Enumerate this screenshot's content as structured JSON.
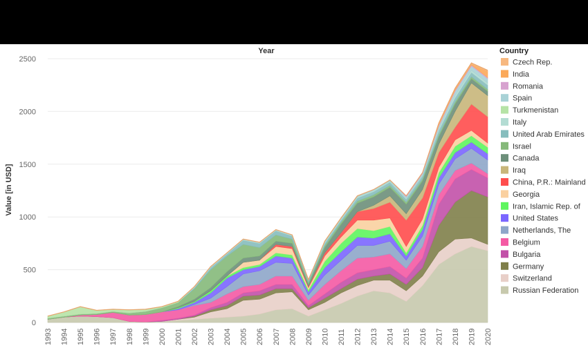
{
  "chart_data": {
    "type": "area",
    "stacked": true,
    "title": "",
    "xlabel": "Year",
    "ylabel": "Value [in USD]",
    "ylim": [
      0,
      2500
    ],
    "yticks": [
      0,
      500,
      1000,
      1500,
      2000,
      2500
    ],
    "grid": true,
    "legend_title": "Country",
    "legend_position": "right",
    "x": [
      "1993",
      "1994",
      "1995",
      "1996",
      "1997",
      "1998",
      "1999",
      "2000",
      "2001",
      "2002",
      "2003",
      "2004",
      "2005",
      "2006",
      "2007",
      "2008",
      "2009",
      "2010",
      "2011",
      "2012",
      "2013",
      "2014",
      "2015",
      "2016",
      "2017",
      "2018",
      "2019",
      "2020"
    ],
    "series": [
      {
        "name": "Russian Federation",
        "color": "#c7c9ad",
        "values": [
          30,
          50,
          60,
          55,
          45,
          10,
          5,
          10,
          20,
          30,
          40,
          50,
          60,
          80,
          120,
          130,
          60,
          120,
          180,
          250,
          300,
          280,
          200,
          350,
          550,
          650,
          720,
          680
        ]
      },
      {
        "name": "Switzerland",
        "color": "#e8cfc8",
        "values": [
          0,
          0,
          0,
          0,
          0,
          0,
          0,
          0,
          10,
          20,
          60,
          80,
          150,
          140,
          160,
          160,
          60,
          70,
          100,
          100,
          100,
          120,
          100,
          90,
          120,
          140,
          80,
          60
        ]
      },
      {
        "name": "Germany",
        "color": "#7f7f4a",
        "values": [
          0,
          0,
          0,
          0,
          0,
          0,
          0,
          0,
          0,
          10,
          20,
          30,
          40,
          40,
          40,
          30,
          20,
          40,
          40,
          60,
          40,
          60,
          60,
          80,
          250,
          350,
          450,
          450
        ]
      },
      {
        "name": "Bulgaria",
        "color": "#c251a8",
        "values": [
          0,
          0,
          0,
          0,
          0,
          0,
          0,
          10,
          10,
          10,
          20,
          30,
          30,
          40,
          40,
          40,
          20,
          40,
          60,
          60,
          60,
          70,
          60,
          90,
          200,
          220,
          200,
          180
        ]
      },
      {
        "name": "Belgium",
        "color": "#f45aa4",
        "values": [
          0,
          0,
          10,
          20,
          50,
          60,
          70,
          80,
          80,
          90,
          50,
          80,
          60,
          60,
          80,
          80,
          50,
          90,
          110,
          140,
          120,
          120,
          90,
          110,
          90,
          80,
          60,
          40
        ]
      },
      {
        "name": "Netherlands, The",
        "color": "#8ea6c9",
        "values": [
          0,
          0,
          0,
          0,
          0,
          0,
          0,
          0,
          0,
          10,
          40,
          70,
          120,
          130,
          130,
          120,
          50,
          90,
          100,
          120,
          110,
          120,
          80,
          100,
          100,
          110,
          140,
          130
        ]
      },
      {
        "name": "United States",
        "color": "#7b66ff",
        "values": [
          0,
          0,
          0,
          0,
          0,
          0,
          0,
          0,
          10,
          20,
          50,
          80,
          40,
          40,
          60,
          50,
          30,
          70,
          80,
          80,
          70,
          70,
          40,
          60,
          60,
          60,
          60,
          60
        ]
      },
      {
        "name": "Iran, Islamic Rep. of",
        "color": "#5ef55e",
        "values": [
          0,
          0,
          0,
          0,
          0,
          0,
          0,
          0,
          10,
          10,
          20,
          20,
          20,
          20,
          30,
          30,
          20,
          60,
          80,
          80,
          70,
          70,
          30,
          40,
          50,
          60,
          60,
          60
        ]
      },
      {
        "name": "Georgia",
        "color": "#fad0a0",
        "values": [
          0,
          0,
          0,
          0,
          0,
          0,
          0,
          0,
          0,
          0,
          0,
          0,
          50,
          40,
          60,
          60,
          20,
          50,
          60,
          80,
          100,
          80,
          60,
          60,
          50,
          60,
          50,
          40
        ]
      },
      {
        "name": "China, P.R.: Mainland",
        "color": "#ff4d4d",
        "values": [
          0,
          0,
          0,
          0,
          0,
          0,
          0,
          0,
          0,
          0,
          0,
          0,
          0,
          0,
          20,
          20,
          10,
          30,
          40,
          80,
          110,
          150,
          250,
          200,
          140,
          120,
          250,
          250
        ]
      },
      {
        "name": "Iraq",
        "color": "#c8b67a",
        "values": [
          0,
          0,
          0,
          0,
          0,
          0,
          0,
          0,
          0,
          0,
          0,
          0,
          0,
          0,
          0,
          0,
          0,
          0,
          0,
          0,
          30,
          60,
          60,
          80,
          80,
          150,
          200,
          200
        ]
      },
      {
        "name": "Canada",
        "color": "#6d8f7a",
        "values": [
          0,
          0,
          0,
          0,
          0,
          0,
          0,
          0,
          10,
          20,
          30,
          40,
          40,
          40,
          30,
          30,
          20,
          50,
          80,
          80,
          80,
          80,
          90,
          80,
          70,
          70,
          40,
          40
        ]
      },
      {
        "name": "Israel",
        "color": "#85b97a",
        "values": [
          10,
          10,
          10,
          10,
          10,
          20,
          30,
          40,
          40,
          100,
          170,
          150,
          130,
          80,
          60,
          40,
          20,
          20,
          20,
          20,
          20,
          20,
          20,
          20,
          20,
          20,
          20,
          20
        ]
      },
      {
        "name": "United Arab Emirates",
        "color": "#86bdbd",
        "values": [
          0,
          0,
          0,
          0,
          0,
          0,
          0,
          0,
          0,
          10,
          20,
          20,
          40,
          40,
          40,
          30,
          20,
          20,
          20,
          30,
          30,
          30,
          30,
          30,
          40,
          40,
          40,
          40
        ]
      },
      {
        "name": "Italy",
        "color": "#b3dcd3",
        "values": [
          0,
          0,
          0,
          0,
          0,
          0,
          0,
          0,
          0,
          10,
          10,
          10,
          10,
          10,
          10,
          10,
          5,
          10,
          10,
          10,
          10,
          10,
          10,
          10,
          20,
          20,
          20,
          20
        ]
      },
      {
        "name": "Turkmenistan",
        "color": "#b6e3a6",
        "values": [
          20,
          40,
          70,
          30,
          20,
          30,
          20,
          10,
          10,
          0,
          0,
          0,
          0,
          0,
          0,
          0,
          0,
          0,
          0,
          0,
          0,
          0,
          0,
          0,
          0,
          0,
          0,
          0
        ]
      },
      {
        "name": "Spain",
        "color": "#a9d2d6",
        "values": [
          0,
          0,
          0,
          0,
          0,
          0,
          0,
          0,
          0,
          0,
          0,
          0,
          0,
          0,
          0,
          0,
          0,
          10,
          10,
          10,
          10,
          10,
          10,
          10,
          20,
          40,
          40,
          40
        ]
      },
      {
        "name": "Romania",
        "color": "#d7a2cf",
        "values": [
          0,
          0,
          0,
          0,
          0,
          0,
          0,
          0,
          0,
          0,
          0,
          0,
          0,
          0,
          0,
          0,
          0,
          0,
          0,
          0,
          0,
          0,
          10,
          10,
          10,
          10,
          10,
          10
        ]
      },
      {
        "name": "India",
        "color": "#fba95a",
        "values": [
          0,
          0,
          0,
          0,
          0,
          0,
          0,
          0,
          0,
          0,
          0,
          0,
          0,
          0,
          0,
          0,
          0,
          0,
          0,
          0,
          0,
          0,
          0,
          0,
          10,
          10,
          10,
          60
        ]
      },
      {
        "name": "Czech Rep.",
        "color": "#f7b87f",
        "values": [
          0,
          0,
          0,
          0,
          0,
          0,
          0,
          0,
          0,
          0,
          0,
          0,
          0,
          0,
          0,
          0,
          0,
          0,
          0,
          0,
          0,
          0,
          0,
          0,
          10,
          10,
          10,
          10
        ]
      }
    ]
  }
}
